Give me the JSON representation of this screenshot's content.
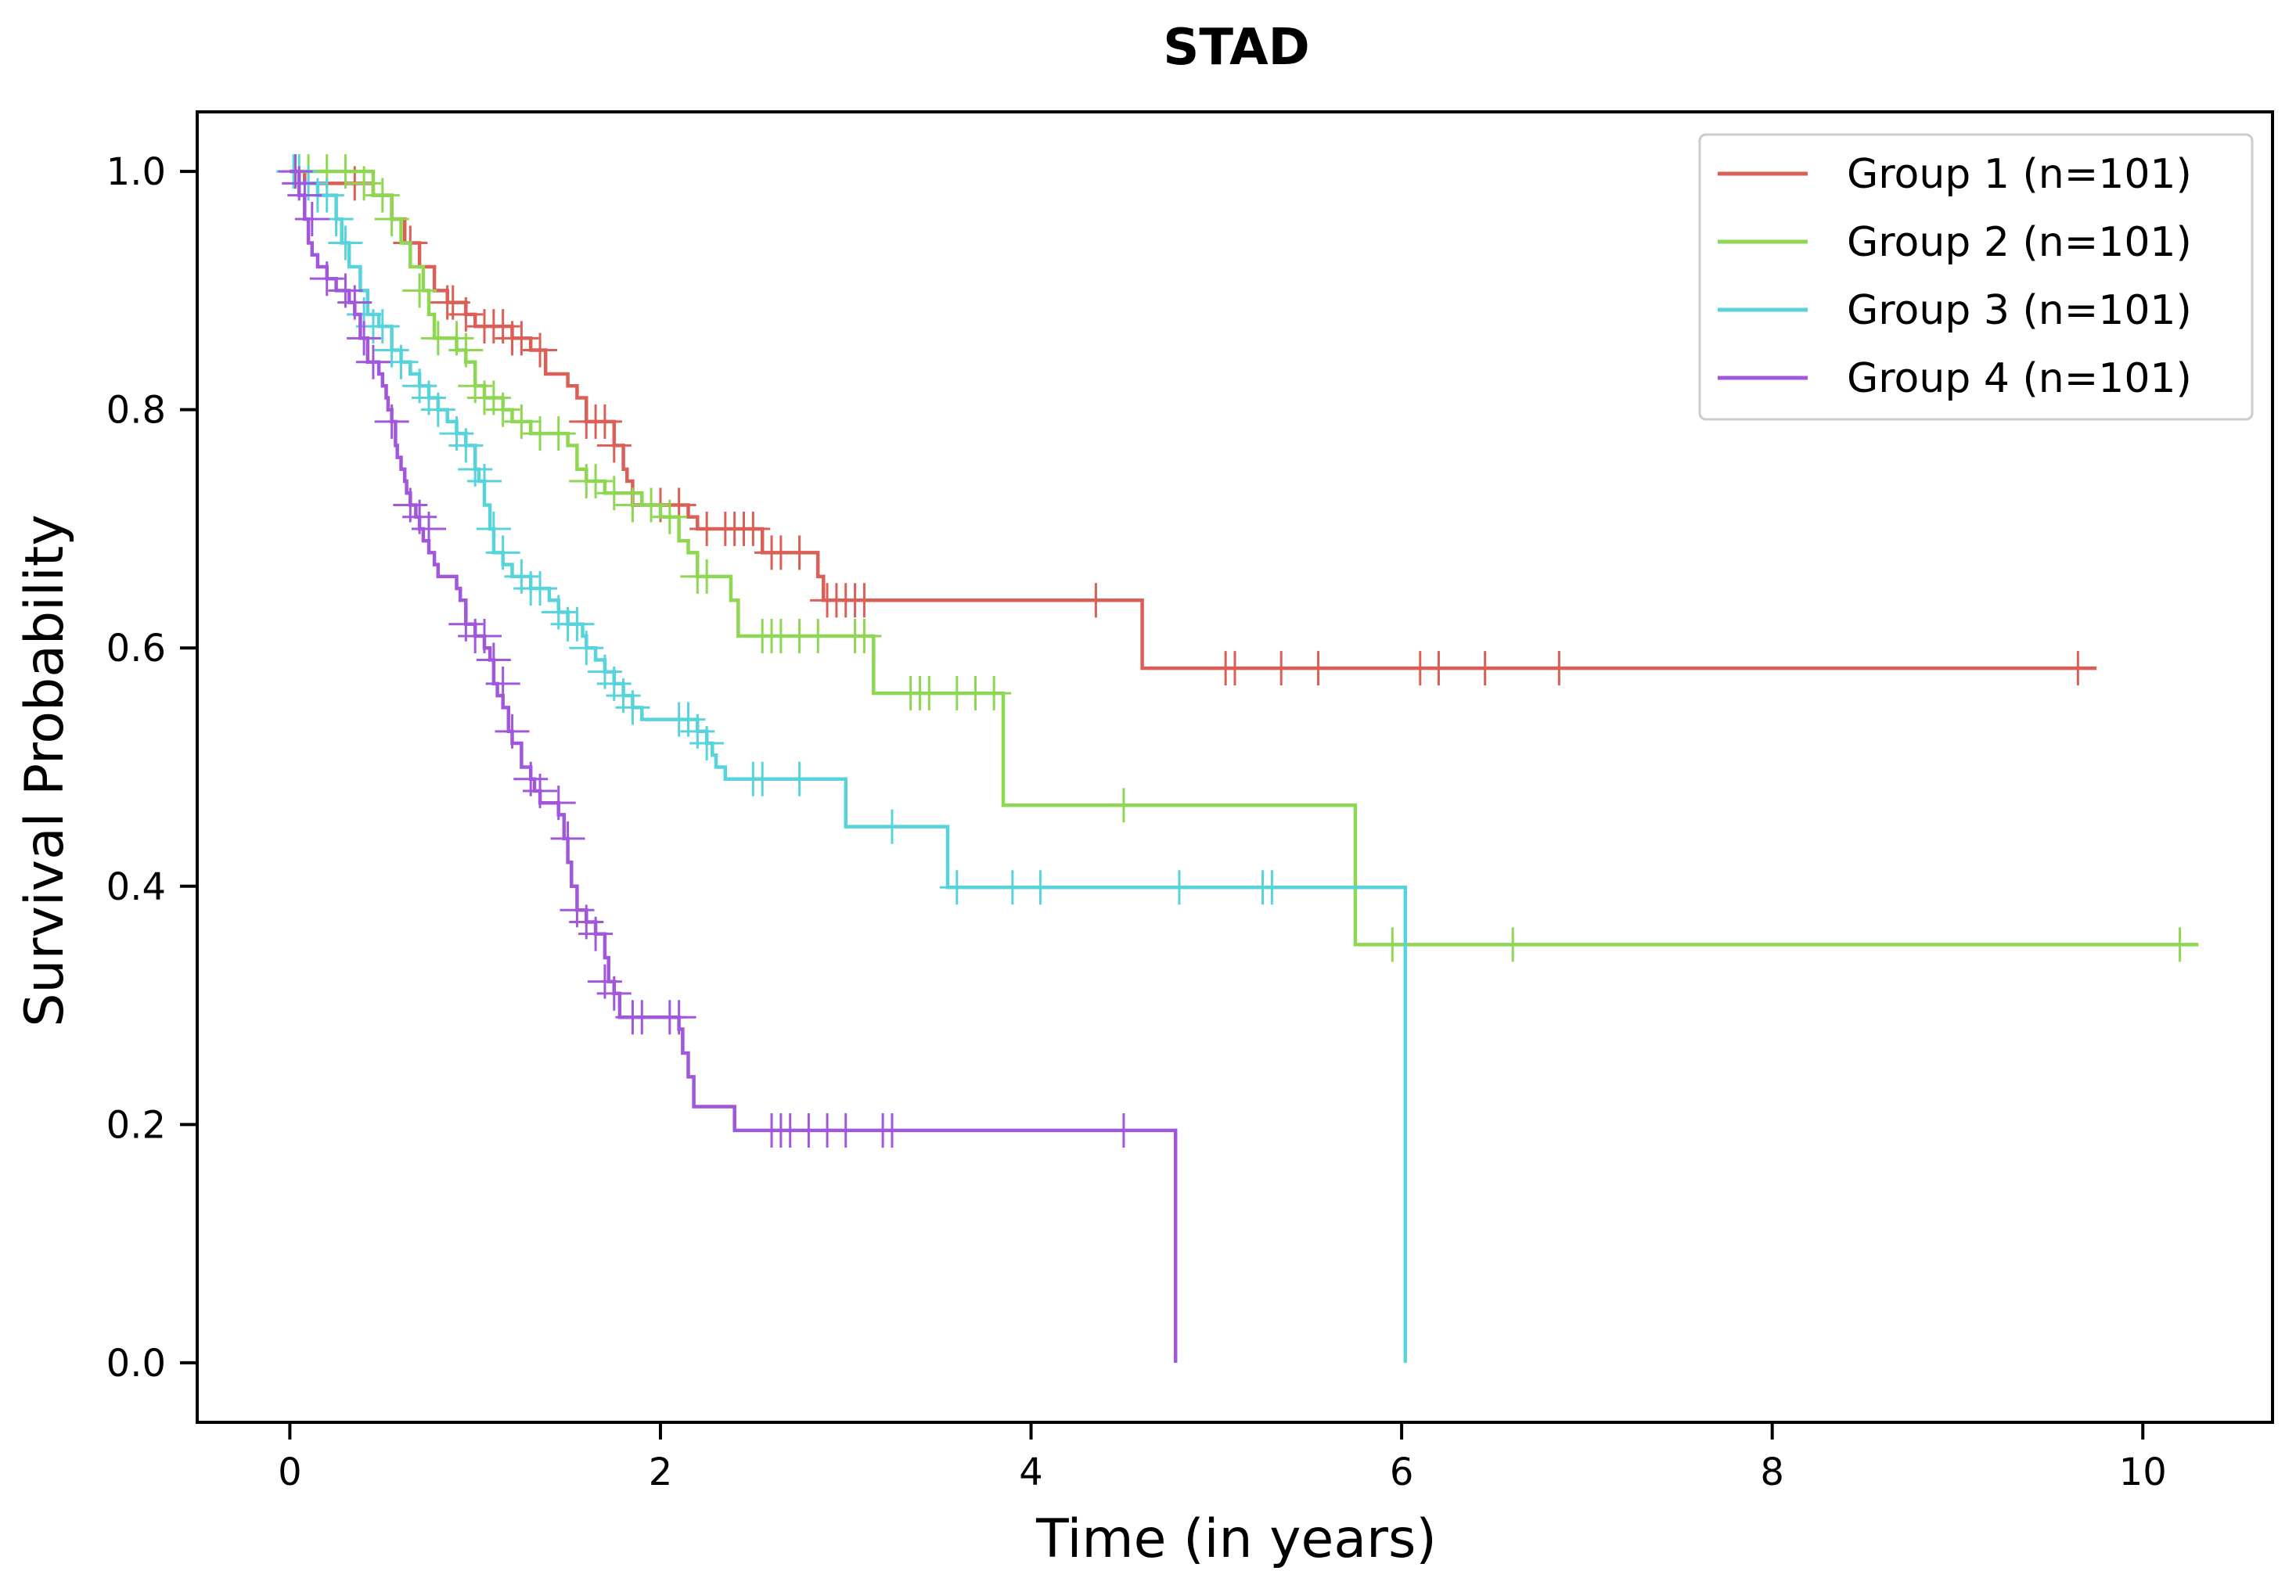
{
  "chart_data": {
    "type": "line",
    "step": true,
    "title": "STAD",
    "xlabel": "Time (in years)",
    "ylabel": "Survival Probability",
    "xlim": [
      -0.5,
      10.7
    ],
    "ylim": [
      -0.05,
      1.05
    ],
    "xticks": [
      0,
      2,
      4,
      6,
      8,
      10
    ],
    "yticks": [
      0.0,
      0.2,
      0.4,
      0.6,
      0.8,
      1.0
    ],
    "xtick_labels": [
      "0",
      "2",
      "4",
      "6",
      "8",
      "10"
    ],
    "ytick_labels": [
      "0.0",
      "0.2",
      "0.4",
      "0.6",
      "0.8",
      "1.0"
    ],
    "grid": false,
    "legend_position": "top-right",
    "series": [
      {
        "name": "Group 1 (n=101)",
        "color": "#db5f57",
        "steps": [
          [
            0,
            1.0
          ],
          [
            0.08,
            0.99
          ],
          [
            0.45,
            0.98
          ],
          [
            0.55,
            0.96
          ],
          [
            0.62,
            0.94
          ],
          [
            0.7,
            0.92
          ],
          [
            0.78,
            0.9
          ],
          [
            0.85,
            0.89
          ],
          [
            0.95,
            0.88
          ],
          [
            1.0,
            0.87
          ],
          [
            1.2,
            0.86
          ],
          [
            1.3,
            0.85
          ],
          [
            1.38,
            0.83
          ],
          [
            1.5,
            0.82
          ],
          [
            1.55,
            0.81
          ],
          [
            1.6,
            0.79
          ],
          [
            1.75,
            0.77
          ],
          [
            1.8,
            0.75
          ],
          [
            1.82,
            0.74
          ],
          [
            1.85,
            0.72
          ],
          [
            2.15,
            0.71
          ],
          [
            2.2,
            0.7
          ],
          [
            2.55,
            0.68
          ],
          [
            2.85,
            0.66
          ],
          [
            2.88,
            0.64
          ],
          [
            4.6,
            0.583
          ],
          [
            9.75,
            0.583
          ]
        ],
        "censor_x": [
          0.35,
          0.65,
          0.85,
          0.88,
          0.95,
          1.05,
          1.1,
          1.15,
          1.2,
          1.25,
          1.35,
          1.6,
          1.65,
          1.7,
          1.75,
          1.85,
          2.0,
          2.1,
          2.25,
          2.35,
          2.4,
          2.45,
          2.5,
          2.6,
          2.65,
          2.75,
          2.9,
          2.95,
          3.0,
          3.05,
          3.1,
          4.35,
          5.05,
          5.1,
          5.35,
          5.55,
          6.1,
          6.2,
          6.45,
          6.85,
          9.65
        ],
        "censor_y": [
          0.99,
          0.94,
          0.89,
          0.89,
          0.88,
          0.87,
          0.87,
          0.87,
          0.86,
          0.86,
          0.85,
          0.79,
          0.79,
          0.79,
          0.77,
          0.72,
          0.72,
          0.72,
          0.7,
          0.7,
          0.7,
          0.7,
          0.7,
          0.68,
          0.68,
          0.68,
          0.64,
          0.64,
          0.64,
          0.64,
          0.64,
          0.64,
          0.583,
          0.583,
          0.583,
          0.583,
          0.583,
          0.583,
          0.583,
          0.583,
          0.583
        ]
      },
      {
        "name": "Group 2 (n=101)",
        "color": "#8ed752",
        "steps": [
          [
            0,
            1.0
          ],
          [
            0.45,
            0.98
          ],
          [
            0.55,
            0.96
          ],
          [
            0.6,
            0.94
          ],
          [
            0.65,
            0.92
          ],
          [
            0.72,
            0.9
          ],
          [
            0.75,
            0.88
          ],
          [
            0.78,
            0.86
          ],
          [
            0.9,
            0.85
          ],
          [
            0.95,
            0.84
          ],
          [
            1.0,
            0.82
          ],
          [
            1.05,
            0.81
          ],
          [
            1.15,
            0.8
          ],
          [
            1.2,
            0.79
          ],
          [
            1.3,
            0.78
          ],
          [
            1.5,
            0.77
          ],
          [
            1.55,
            0.75
          ],
          [
            1.6,
            0.74
          ],
          [
            1.7,
            0.73
          ],
          [
            1.9,
            0.72
          ],
          [
            2.0,
            0.71
          ],
          [
            2.1,
            0.69
          ],
          [
            2.15,
            0.68
          ],
          [
            2.2,
            0.66
          ],
          [
            2.38,
            0.64
          ],
          [
            2.42,
            0.61
          ],
          [
            3.15,
            0.562
          ],
          [
            3.85,
            0.468
          ],
          [
            5.75,
            0.351
          ],
          [
            10.3,
            0.351
          ]
        ],
        "censor_x": [
          0.1,
          0.2,
          0.3,
          0.4,
          0.5,
          0.55,
          0.7,
          0.8,
          0.9,
          0.95,
          1.0,
          1.05,
          1.1,
          1.15,
          1.25,
          1.35,
          1.45,
          1.6,
          1.65,
          1.75,
          1.85,
          1.95,
          2.05,
          2.2,
          2.25,
          2.55,
          2.6,
          2.65,
          2.75,
          2.85,
          3.05,
          3.1,
          3.35,
          3.4,
          3.45,
          3.6,
          3.7,
          3.8,
          4.5,
          5.95,
          6.6,
          10.2
        ],
        "censor_y": [
          1.0,
          1.0,
          1.0,
          0.99,
          0.98,
          0.96,
          0.9,
          0.86,
          0.86,
          0.85,
          0.82,
          0.81,
          0.81,
          0.8,
          0.79,
          0.78,
          0.78,
          0.74,
          0.74,
          0.73,
          0.72,
          0.72,
          0.71,
          0.66,
          0.66,
          0.61,
          0.61,
          0.61,
          0.61,
          0.61,
          0.61,
          0.61,
          0.562,
          0.562,
          0.562,
          0.562,
          0.562,
          0.562,
          0.468,
          0.351,
          0.351,
          0.351
        ]
      },
      {
        "name": "Group 3 (n=101)",
        "color": "#57d3db",
        "steps": [
          [
            0,
            1.0
          ],
          [
            0.05,
            0.99
          ],
          [
            0.15,
            0.98
          ],
          [
            0.25,
            0.96
          ],
          [
            0.28,
            0.94
          ],
          [
            0.32,
            0.92
          ],
          [
            0.38,
            0.9
          ],
          [
            0.42,
            0.88
          ],
          [
            0.48,
            0.87
          ],
          [
            0.55,
            0.85
          ],
          [
            0.6,
            0.84
          ],
          [
            0.65,
            0.83
          ],
          [
            0.7,
            0.82
          ],
          [
            0.75,
            0.81
          ],
          [
            0.8,
            0.8
          ],
          [
            0.85,
            0.79
          ],
          [
            0.9,
            0.78
          ],
          [
            0.95,
            0.77
          ],
          [
            1.0,
            0.75
          ],
          [
            1.02,
            0.74
          ],
          [
            1.05,
            0.72
          ],
          [
            1.08,
            0.7
          ],
          [
            1.1,
            0.68
          ],
          [
            1.15,
            0.67
          ],
          [
            1.2,
            0.66
          ],
          [
            1.3,
            0.65
          ],
          [
            1.4,
            0.64
          ],
          [
            1.45,
            0.63
          ],
          [
            1.5,
            0.62
          ],
          [
            1.58,
            0.61
          ],
          [
            1.6,
            0.6
          ],
          [
            1.65,
            0.59
          ],
          [
            1.7,
            0.58
          ],
          [
            1.75,
            0.57
          ],
          [
            1.8,
            0.56
          ],
          [
            1.85,
            0.55
          ],
          [
            1.9,
            0.54
          ],
          [
            2.2,
            0.53
          ],
          [
            2.25,
            0.52
          ],
          [
            2.28,
            0.51
          ],
          [
            2.3,
            0.5
          ],
          [
            2.35,
            0.49
          ],
          [
            3.0,
            0.45
          ],
          [
            3.55,
            0.399
          ],
          [
            6.02,
            0.0
          ]
        ],
        "censor_x": [
          0.02,
          0.05,
          0.1,
          0.15,
          0.2,
          0.25,
          0.3,
          0.4,
          0.45,
          0.5,
          0.55,
          0.6,
          0.7,
          0.75,
          0.8,
          0.9,
          0.95,
          1.0,
          1.05,
          1.1,
          1.15,
          1.25,
          1.3,
          1.35,
          1.45,
          1.5,
          1.55,
          1.6,
          1.7,
          1.75,
          1.8,
          1.85,
          2.1,
          2.15,
          2.2,
          2.25,
          2.5,
          2.55,
          2.75,
          3.25,
          3.6,
          3.9,
          4.05,
          4.8,
          5.25,
          5.3
        ],
        "censor_y": [
          1.0,
          1.0,
          0.99,
          0.98,
          0.98,
          0.96,
          0.94,
          0.88,
          0.87,
          0.87,
          0.85,
          0.84,
          0.82,
          0.81,
          0.8,
          0.78,
          0.77,
          0.75,
          0.74,
          0.7,
          0.68,
          0.66,
          0.65,
          0.65,
          0.63,
          0.62,
          0.62,
          0.6,
          0.58,
          0.57,
          0.56,
          0.55,
          0.54,
          0.54,
          0.53,
          0.52,
          0.49,
          0.49,
          0.49,
          0.45,
          0.399,
          0.399,
          0.399,
          0.399,
          0.399,
          0.399
        ]
      },
      {
        "name": "Group 4 (n=101)",
        "color": "#a157db",
        "steps": [
          [
            0,
            1.0
          ],
          [
            0.05,
            0.98
          ],
          [
            0.08,
            0.96
          ],
          [
            0.1,
            0.94
          ],
          [
            0.12,
            0.93
          ],
          [
            0.15,
            0.92
          ],
          [
            0.2,
            0.91
          ],
          [
            0.25,
            0.9
          ],
          [
            0.32,
            0.89
          ],
          [
            0.35,
            0.88
          ],
          [
            0.38,
            0.86
          ],
          [
            0.42,
            0.84
          ],
          [
            0.48,
            0.83
          ],
          [
            0.5,
            0.82
          ],
          [
            0.52,
            0.81
          ],
          [
            0.53,
            0.8
          ],
          [
            0.55,
            0.79
          ],
          [
            0.57,
            0.77
          ],
          [
            0.58,
            0.76
          ],
          [
            0.6,
            0.75
          ],
          [
            0.62,
            0.74
          ],
          [
            0.63,
            0.73
          ],
          [
            0.65,
            0.72
          ],
          [
            0.68,
            0.71
          ],
          [
            0.7,
            0.7
          ],
          [
            0.72,
            0.69
          ],
          [
            0.75,
            0.68
          ],
          [
            0.78,
            0.67
          ],
          [
            0.8,
            0.66
          ],
          [
            0.9,
            0.65
          ],
          [
            0.92,
            0.64
          ],
          [
            0.95,
            0.62
          ],
          [
            1.0,
            0.61
          ],
          [
            1.05,
            0.6
          ],
          [
            1.08,
            0.59
          ],
          [
            1.1,
            0.57
          ],
          [
            1.12,
            0.56
          ],
          [
            1.15,
            0.55
          ],
          [
            1.18,
            0.53
          ],
          [
            1.2,
            0.52
          ],
          [
            1.25,
            0.5
          ],
          [
            1.3,
            0.49
          ],
          [
            1.32,
            0.48
          ],
          [
            1.35,
            0.47
          ],
          [
            1.45,
            0.46
          ],
          [
            1.48,
            0.44
          ],
          [
            1.5,
            0.42
          ],
          [
            1.52,
            0.4
          ],
          [
            1.55,
            0.38
          ],
          [
            1.6,
            0.37
          ],
          [
            1.65,
            0.36
          ],
          [
            1.7,
            0.34
          ],
          [
            1.72,
            0.32
          ],
          [
            1.75,
            0.31
          ],
          [
            1.78,
            0.29
          ],
          [
            2.1,
            0.28
          ],
          [
            2.12,
            0.26
          ],
          [
            2.15,
            0.24
          ],
          [
            2.18,
            0.215
          ],
          [
            2.4,
            0.195
          ],
          [
            4.78,
            0.0
          ]
        ],
        "censor_x": [
          0.03,
          0.05,
          0.08,
          0.12,
          0.2,
          0.3,
          0.35,
          0.4,
          0.45,
          0.55,
          0.65,
          0.7,
          0.75,
          0.95,
          1.0,
          1.05,
          1.1,
          1.15,
          1.2,
          1.3,
          1.35,
          1.45,
          1.5,
          1.55,
          1.6,
          1.65,
          1.7,
          1.75,
          1.85,
          1.9,
          2.05,
          2.1,
          2.6,
          2.65,
          2.7,
          2.8,
          2.9,
          3.0,
          3.2,
          3.25,
          4.5
        ],
        "censor_y": [
          1.0,
          0.99,
          0.98,
          0.96,
          0.91,
          0.9,
          0.89,
          0.86,
          0.84,
          0.79,
          0.72,
          0.71,
          0.7,
          0.62,
          0.61,
          0.61,
          0.59,
          0.57,
          0.53,
          0.49,
          0.48,
          0.47,
          0.44,
          0.38,
          0.37,
          0.36,
          0.32,
          0.31,
          0.29,
          0.29,
          0.29,
          0.29,
          0.195,
          0.195,
          0.195,
          0.195,
          0.195,
          0.195,
          0.195,
          0.195,
          0.195
        ]
      }
    ]
  }
}
